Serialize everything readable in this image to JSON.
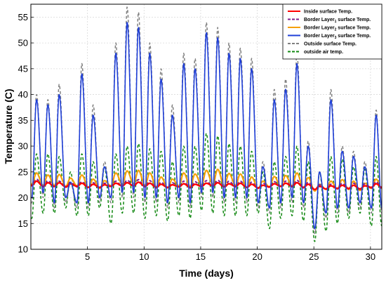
{
  "chart_data": {
    "type": "line",
    "xlabel": "Time (days)",
    "ylabel": "Temperature (C)",
    "xlim": [
      0,
      31
    ],
    "ylim": [
      10,
      57.5
    ],
    "xticks": [
      5,
      10,
      15,
      20,
      25,
      30
    ],
    "yticks": [
      10,
      15,
      20,
      25,
      30,
      35,
      40,
      45,
      50,
      55
    ],
    "grid": true,
    "legend_position": "top-right",
    "peak_days": [
      0.5,
      1.5,
      2.5,
      3.5,
      4.5,
      5.5,
      6.5,
      7.5,
      8.5,
      9.5,
      10.5,
      11.5,
      12.5,
      13.5,
      14.5,
      15.5,
      16.5,
      17.5,
      18.5,
      19.5,
      20.5,
      21.5,
      22.5,
      23.5,
      24.5,
      25.5,
      26.5,
      27.5,
      28.5,
      29.5,
      30.5
    ],
    "series": [
      {
        "name": "Inside surface Temp.",
        "color": "#ff0000",
        "style": "solid",
        "mean": 22.6,
        "daily_peak": [
          23.2,
          22.9,
          22.9,
          22.7,
          22.8,
          22.6,
          22.5,
          22.8,
          22.9,
          23.0,
          22.8,
          22.6,
          22.5,
          22.7,
          22.6,
          22.8,
          22.9,
          22.7,
          22.8,
          22.6,
          22.4,
          22.7,
          22.8,
          22.9,
          22.6,
          22.2,
          22.3,
          22.4,
          22.4,
          22.3,
          22.7
        ],
        "daily_min": [
          22.4,
          22.2,
          22.2,
          22.1,
          22.2,
          22.0,
          22.0,
          22.2,
          22.3,
          22.3,
          22.2,
          22.0,
          22.0,
          22.1,
          22.0,
          22.2,
          22.3,
          22.1,
          22.2,
          22.0,
          21.9,
          22.1,
          22.2,
          22.2,
          22.0,
          21.6,
          21.7,
          21.8,
          21.8,
          21.7,
          22.0
        ]
      },
      {
        "name": "Border Layer1 surface Temp.",
        "color": "#7f1f8f",
        "style": "dashed",
        "mean": 22.8,
        "daily_peak": [
          23.6,
          23.3,
          23.2,
          23.0,
          23.1,
          22.9,
          22.8,
          23.2,
          23.4,
          23.5,
          23.3,
          23.0,
          22.9,
          23.2,
          23.1,
          23.3,
          23.4,
          23.2,
          23.2,
          23.0,
          22.8,
          23.1,
          23.2,
          23.4,
          23.0,
          22.5,
          22.6,
          22.8,
          22.8,
          22.7,
          23.1
        ],
        "daily_min": [
          22.3,
          22.1,
          22.1,
          22.0,
          22.1,
          21.9,
          21.9,
          22.1,
          22.2,
          22.2,
          22.1,
          21.9,
          21.9,
          22.0,
          21.9,
          22.1,
          22.2,
          22.0,
          22.1,
          21.9,
          21.8,
          22.0,
          22.1,
          22.1,
          21.9,
          21.5,
          21.6,
          21.7,
          21.7,
          21.6,
          21.9
        ]
      },
      {
        "name": "Border Layer2 surface Temp.",
        "color": "#f5a00a",
        "style": "solid",
        "daily_peak": [
          24.8,
          24.4,
          24.5,
          23.8,
          24.4,
          23.6,
          23.3,
          24.8,
          25.2,
          25.3,
          24.8,
          24.0,
          23.6,
          24.8,
          24.6,
          25.3,
          25.5,
          24.7,
          24.6,
          24.0,
          23.2,
          24.1,
          24.3,
          24.8,
          23.9,
          22.6,
          23.2,
          23.5,
          23.2,
          22.8,
          23.6
        ],
        "daily_min": [
          22.6,
          22.4,
          22.4,
          22.2,
          22.3,
          22.0,
          21.8,
          22.3,
          22.6,
          22.7,
          22.4,
          22.1,
          21.9,
          22.3,
          22.2,
          22.5,
          22.6,
          22.3,
          22.4,
          22.0,
          21.8,
          22.1,
          22.2,
          22.3,
          21.9,
          21.3,
          21.6,
          21.7,
          21.6,
          21.4,
          21.8
        ]
      },
      {
        "name": "Border Layer3 surface Temp.",
        "color": "#1f3fd8",
        "style": "solid",
        "daily_peak": [
          39,
          38,
          40,
          23,
          44,
          36,
          26,
          48,
          54,
          53,
          48,
          43,
          36,
          46,
          45,
          52,
          51,
          48,
          47,
          45,
          26,
          39,
          41,
          46,
          30,
          25,
          39,
          29,
          28,
          26,
          36
        ],
        "daily_min": [
          20,
          21,
          19,
          20,
          19,
          19,
          20,
          20,
          21,
          21,
          20,
          20,
          19,
          20,
          19,
          21,
          21,
          20,
          20,
          20,
          19,
          18,
          19,
          20,
          19,
          14,
          17,
          18,
          18,
          19,
          18
        ]
      },
      {
        "name": "Outside surface Temp.",
        "color": "#808080",
        "style": "dashed",
        "daily_peak": [
          40,
          39,
          42,
          23,
          46,
          38,
          27,
          50,
          57,
          56,
          50,
          45,
          38,
          48,
          47,
          54,
          53,
          50,
          49,
          47,
          27,
          41,
          43,
          48,
          31,
          25,
          41,
          30,
          29,
          27,
          37
        ],
        "daily_min": [
          19,
          20,
          18,
          19,
          18,
          18,
          19,
          19,
          20,
          20,
          19,
          19,
          18,
          19,
          18,
          20,
          20,
          19,
          19,
          19,
          18,
          17,
          18,
          19,
          18,
          13,
          16,
          17,
          17,
          18,
          17
        ]
      },
      {
        "name": "outside air temp.",
        "color": "#118811",
        "style": "dashed",
        "daily_peak": [
          28.5,
          28.5,
          28.0,
          25.0,
          28.5,
          27.0,
          26.0,
          28.5,
          30.0,
          30.5,
          29.5,
          29.0,
          27.0,
          30.0,
          30.0,
          32.5,
          32.0,
          30.5,
          30.0,
          29.0,
          25.0,
          27.0,
          28.0,
          30.0,
          27.0,
          25.0,
          28.0,
          27.5,
          26.0,
          25.5,
          28.0
        ],
        "daily_min": [
          16.0,
          17.0,
          17.0,
          18.0,
          16.5,
          16.5,
          18.0,
          15.0,
          17.0,
          17.0,
          16.0,
          16.5,
          15.5,
          16.5,
          16.0,
          17.5,
          17.0,
          16.5,
          16.5,
          16.5,
          17.0,
          14.0,
          16.0,
          16.5,
          15.5,
          11.5,
          13.5,
          15.0,
          16.0,
          17.0,
          14.5
        ]
      }
    ]
  }
}
